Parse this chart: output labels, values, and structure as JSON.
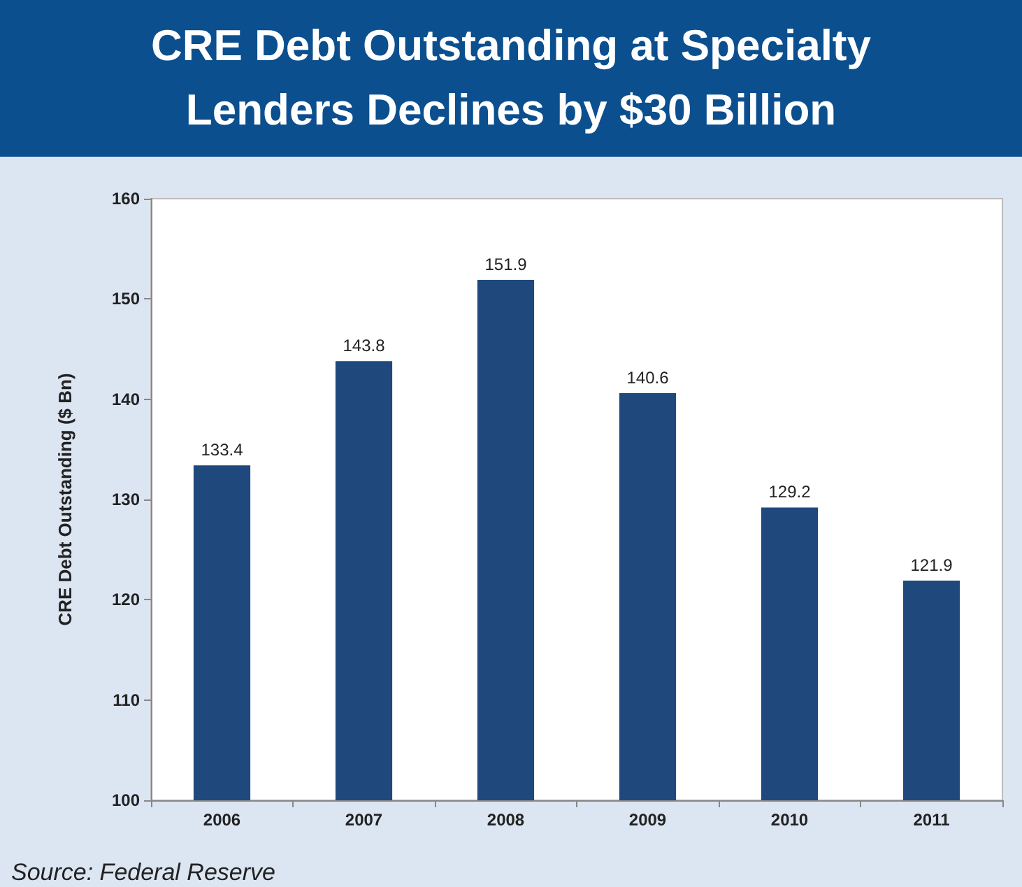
{
  "chart_data": {
    "type": "bar",
    "title": "CRE Debt Outstanding at Specialty Lenders Declines by $30 Billion",
    "ylabel": "CRE Debt Outstanding ($ Bn)",
    "categories": [
      "2006",
      "2007",
      "2008",
      "2009",
      "2010",
      "2011"
    ],
    "values": [
      133.4,
      143.8,
      151.9,
      140.6,
      129.2,
      121.9
    ],
    "color": "#1f497d",
    "ylim": [
      100,
      160
    ],
    "yticks": [
      100,
      110,
      120,
      130,
      140,
      150,
      160
    ],
    "data_labels": true,
    "grid": false,
    "annotations": [
      "Source: Federal Reserve"
    ]
  }
}
